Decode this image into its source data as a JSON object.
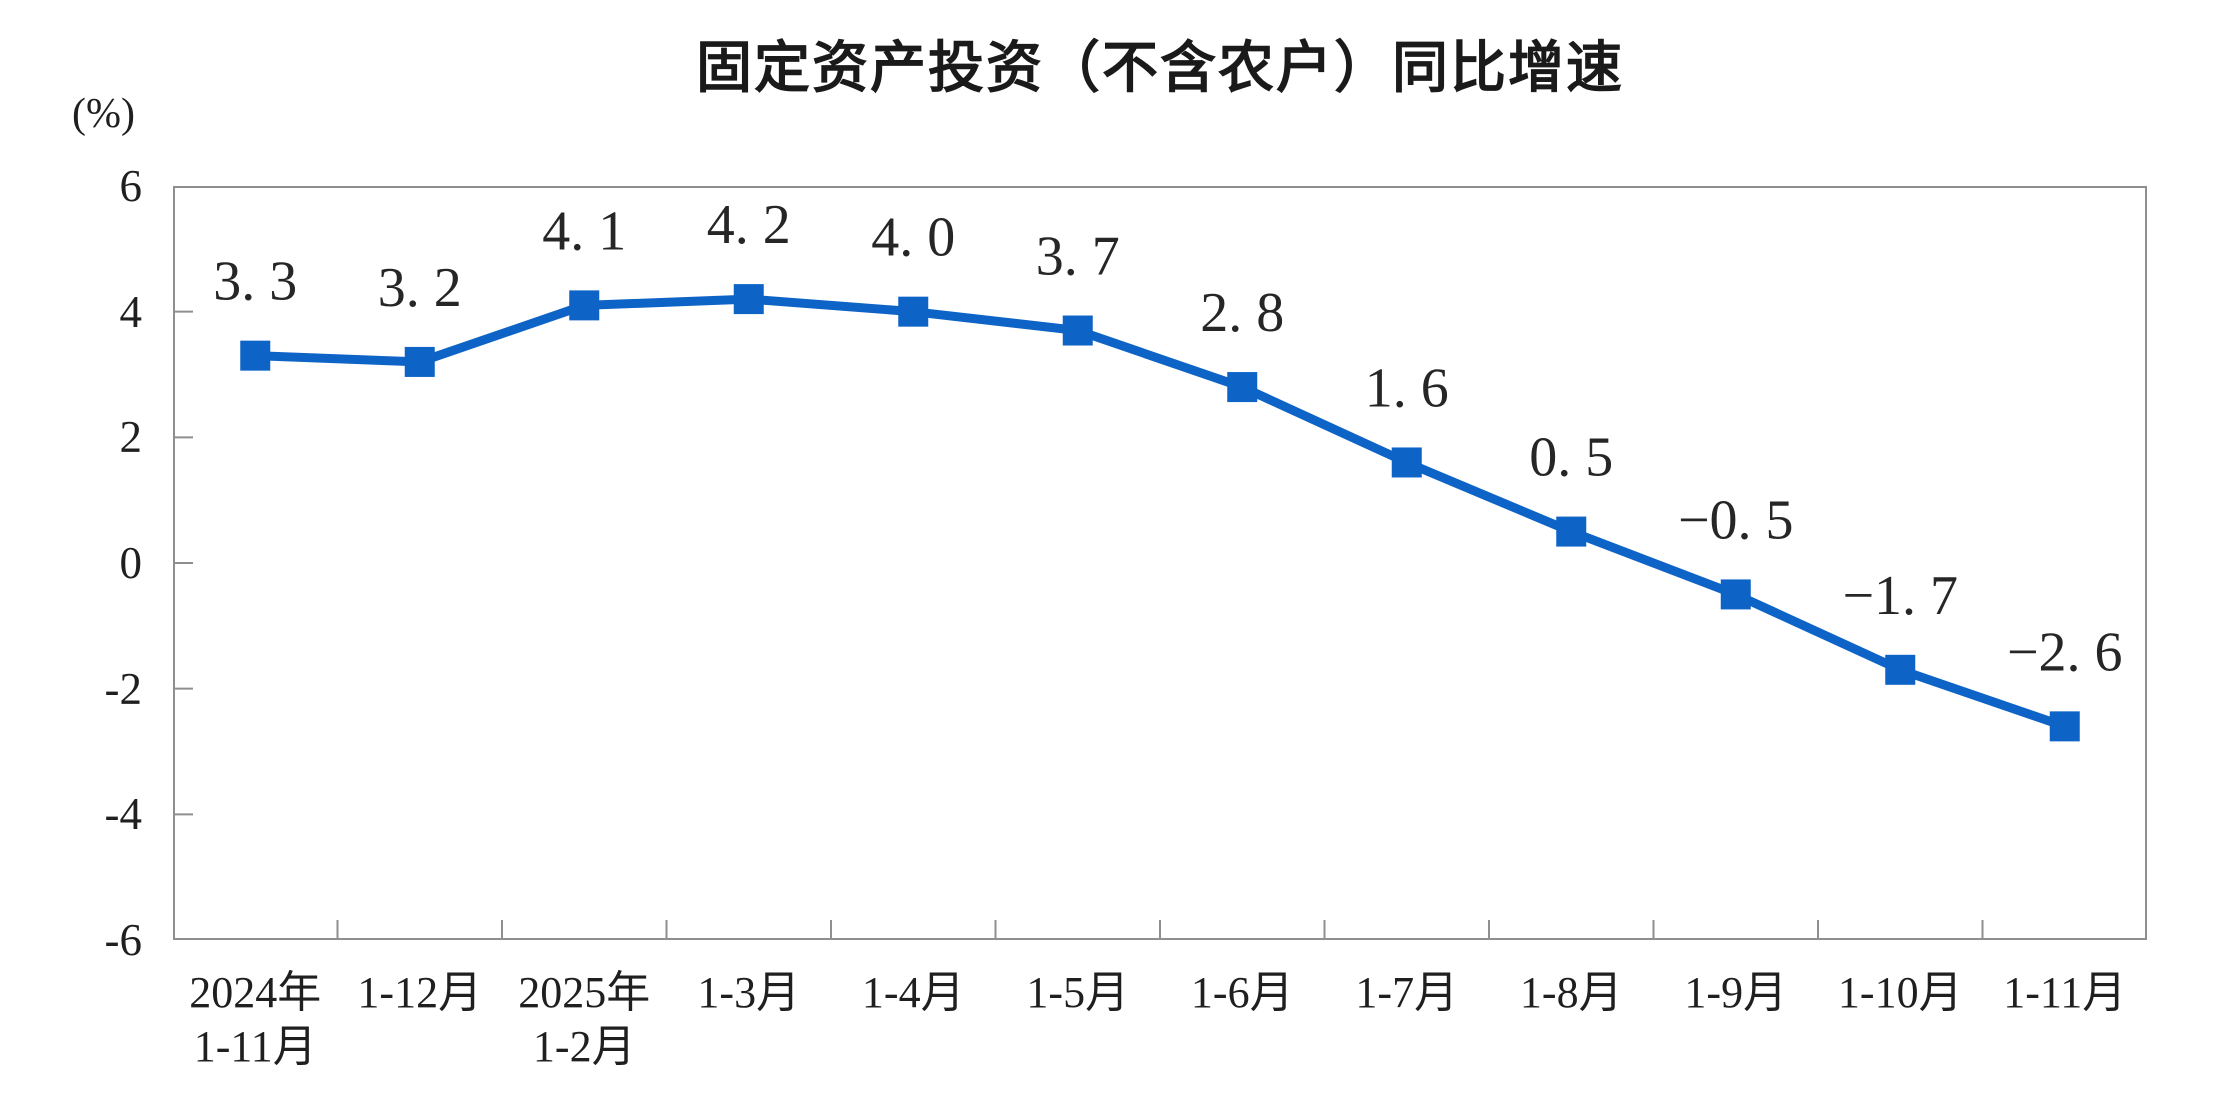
{
  "title": "固定资产投资（不含农户）同比增速",
  "unit_label": "(%)",
  "colors": {
    "line": "#0d64c6",
    "marker": "#0d64c6",
    "axis": "#8f8f8f",
    "text": "#1f1f1f",
    "point_label": "#262626",
    "title": "#1a1a1a",
    "background": "#ffffff"
  },
  "chart_data": {
    "type": "line",
    "title": "固定资产投资（不含农户）同比增速",
    "xlabel": "",
    "ylabel": "(%)",
    "categories": [
      "2024年\n1-11月",
      "1-12月",
      "2025年\n1-2月",
      "1-3月",
      "1-4月",
      "1-5月",
      "1-6月",
      "1-7月",
      "1-8月",
      "1-9月",
      "1-10月",
      "1-11月"
    ],
    "values": [
      3.3,
      3.2,
      4.1,
      4.2,
      4.0,
      3.7,
      2.8,
      1.6,
      0.5,
      -0.5,
      -1.7,
      -2.6
    ],
    "point_labels": [
      "3. 3",
      "3. 2",
      "4. 1",
      "4. 2",
      "4. 0",
      "3. 7",
      "2. 8",
      "1. 6",
      "0. 5",
      "−0. 5",
      "−1. 7",
      "−2. 6"
    ],
    "ylim": [
      -6,
      6
    ],
    "yticks": [
      6,
      4,
      2,
      0,
      -2,
      -4,
      -6
    ],
    "ytick_labels": [
      "6",
      "4",
      "2",
      "0",
      "-2",
      "-4",
      "-6"
    ],
    "grid": false,
    "legend_position": "none",
    "marker": "square"
  }
}
